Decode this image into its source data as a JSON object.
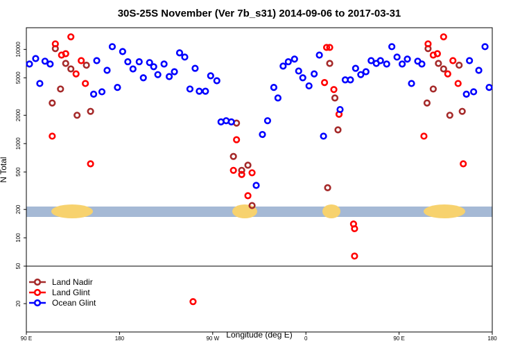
{
  "chart_data": {
    "type": "scatter",
    "title": "30S-25S November (Ver 7b_s31)   2014-09-06 to 2017-03-31",
    "x_label": "Longitude (deg E)",
    "y_label": "N Total",
    "log_y": true,
    "legend": "bottom-left",
    "xlim": [
      90,
      540
    ],
    "xticks": [
      {
        "value": 90,
        "label": "90 E"
      },
      {
        "value": 180,
        "label": "180"
      },
      {
        "value": 270,
        "label": "90 W"
      },
      {
        "value": 360,
        "label": "0"
      },
      {
        "value": 450,
        "label": "90 E"
      },
      {
        "value": 540,
        "label": "180"
      }
    ],
    "ylim": [
      10,
      17000
    ],
    "yticks": [
      20,
      50,
      100,
      200,
      500,
      1000,
      2000,
      5000,
      10000
    ],
    "series": [
      {
        "name": "Land Nadir",
        "color": "#a52a2a",
        "x": [
          115,
          118,
          123,
          128,
          133,
          139,
          148,
          152,
          290,
          293,
          298,
          304,
          308,
          381,
          383,
          388,
          391,
          477,
          478,
          483,
          488,
          493,
          499,
          508,
          511
        ],
        "values": [
          2700,
          10200,
          3800,
          7100,
          6200,
          2000,
          6800,
          2200,
          730,
          1650,
          520,
          590,
          220,
          340,
          7100,
          3050,
          1400,
          2700,
          10200,
          3800,
          7100,
          6200,
          2000,
          6800,
          2200
        ]
      },
      {
        "name": "Land Glint",
        "color": "#ff0000",
        "x": [
          115,
          118,
          124,
          128,
          133,
          138,
          143,
          147,
          152,
          251,
          290,
          293,
          298,
          304,
          308,
          378,
          380,
          383,
          387,
          392,
          406,
          407,
          407,
          474,
          478,
          483,
          487,
          493,
          497,
          502,
          507,
          512
        ],
        "values": [
          1200,
          11450,
          8700,
          9000,
          13600,
          5500,
          7600,
          4350,
          610,
          21,
          520,
          1100,
          470,
          280,
          490,
          4450,
          10500,
          10500,
          3750,
          2050,
          140,
          125,
          64,
          1200,
          11450,
          8700,
          9000,
          13600,
          5500,
          7600,
          4350,
          610
        ]
      },
      {
        "name": "Ocean Glint",
        "color": "#0000ff",
        "x": [
          93,
          99,
          103,
          108,
          113,
          155,
          158,
          163,
          168,
          173,
          178,
          183,
          188,
          193,
          199,
          203,
          209,
          213,
          217,
          223,
          228,
          233,
          238,
          243,
          248,
          253,
          257,
          263,
          268,
          274,
          278,
          283,
          288,
          312,
          318,
          323,
          329,
          333,
          338,
          343,
          349,
          353,
          357,
          363,
          368,
          373,
          377,
          393,
          398,
          403,
          408,
          413,
          418,
          423,
          428,
          432,
          438,
          443,
          448,
          453,
          458,
          462,
          468,
          472,
          515,
          518,
          522,
          527,
          533,
          537
        ],
        "values": [
          7000,
          8000,
          4350,
          7500,
          7000,
          3350,
          7600,
          3550,
          6000,
          10700,
          3950,
          9500,
          7400,
          6200,
          7400,
          5000,
          7250,
          6550,
          5400,
          7000,
          5150,
          5800,
          9200,
          8300,
          3800,
          6300,
          3600,
          3600,
          5250,
          4650,
          1700,
          1750,
          1700,
          360,
          1250,
          1750,
          3950,
          3050,
          6650,
          7400,
          7900,
          5900,
          5000,
          4100,
          5500,
          8700,
          1200,
          2300,
          4750,
          4750,
          6300,
          5400,
          5800,
          7600,
          7100,
          7600,
          7000,
          10700,
          8300,
          7000,
          7900,
          4350,
          7500,
          7000,
          3350,
          7600,
          3550,
          6000,
          10700,
          3950
        ]
      }
    ]
  }
}
